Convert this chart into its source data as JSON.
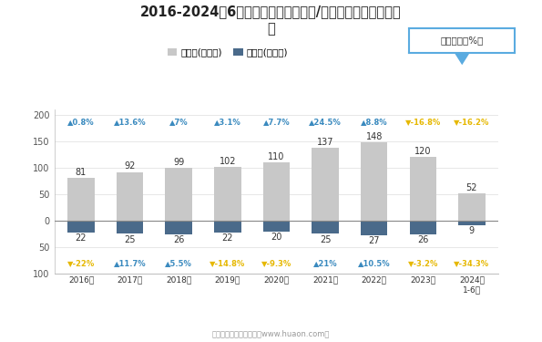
{
  "title_line1": "2016-2024年6月汕头市（境内目的地/货源地）进、出口额统",
  "title_line2": "计",
  "years": [
    "2016年",
    "2017年",
    "2018年",
    "2019年",
    "2020年",
    "2021年",
    "2022年",
    "2023年",
    "2024年\n1-6月"
  ],
  "export_values": [
    81,
    92,
    99,
    102,
    110,
    137,
    148,
    120,
    52
  ],
  "import_values": [
    -22,
    -25,
    -26,
    -22,
    -20,
    -25,
    -27,
    -26,
    -9
  ],
  "import_labels": [
    22,
    25,
    26,
    22,
    20,
    25,
    27,
    26,
    9
  ],
  "export_growth": [
    "▲0.8%",
    "▲13.6%",
    "▲7%",
    "▲3.1%",
    "▲7.7%",
    "▲24.5%",
    "▲8.8%",
    "▼-16.8%",
    "▼-16.2%"
  ],
  "import_growth": [
    "▼-22%",
    "▲11.7%",
    "▲5.5%",
    "▼-14.8%",
    "▼-9.3%",
    "▲21%",
    "▲10.5%",
    "▼-3.2%",
    "▼-34.3%"
  ],
  "export_growth_up": [
    true,
    true,
    true,
    true,
    true,
    true,
    true,
    false,
    false
  ],
  "import_growth_up": [
    false,
    true,
    true,
    false,
    false,
    true,
    true,
    false,
    false
  ],
  "export_color": "#c8c8c8",
  "import_color": "#4a6a8a",
  "growth_up_color": "#3a8abf",
  "growth_down_color": "#e6b800",
  "legend_export": "出口额(亿美元)",
  "legend_import": "进口额(亿美元)",
  "legend_box_label": "同比增速（%）",
  "legend_box_color": "#5aabe0",
  "background_color": "#ffffff",
  "footer": "制图：华经产业研究院（www.huaon.com）"
}
